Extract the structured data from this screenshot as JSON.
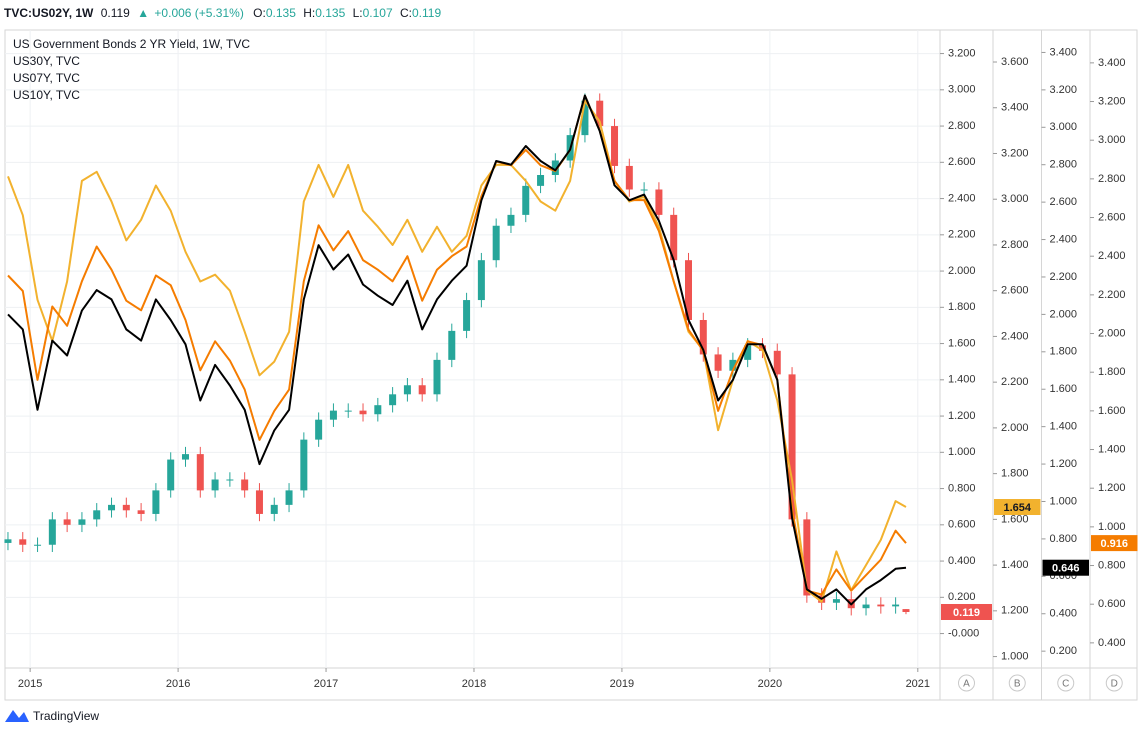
{
  "header": {
    "symbol": "TVC:US02Y, 1W",
    "last": "0.119",
    "change": "+0.006 (+5.31%)",
    "open_label": "O:",
    "open": "0.135",
    "high_label": "H:",
    "high": "0.135",
    "low_label": "L:",
    "low": "0.107",
    "close_label": "C:",
    "close": "0.119"
  },
  "chart_data": {
    "type": "candlestick",
    "title": "US Government Bonds 2 YR Yield, 1W, TVC",
    "axis": "A",
    "up_color": "#26a69a",
    "down_color": "#ef5350",
    "grid": true,
    "x": [
      2014.85,
      2014.95,
      2015.05,
      2015.15,
      2015.25,
      2015.35,
      2015.45,
      2015.55,
      2015.65,
      2015.75,
      2015.85,
      2015.95,
      2016.05,
      2016.15,
      2016.25,
      2016.35,
      2016.45,
      2016.55,
      2016.65,
      2016.75,
      2016.85,
      2016.95,
      2017.05,
      2017.15,
      2017.25,
      2017.35,
      2017.45,
      2017.55,
      2017.65,
      2017.75,
      2017.85,
      2017.95,
      2018.05,
      2018.15,
      2018.25,
      2018.35,
      2018.45,
      2018.55,
      2018.65,
      2018.75,
      2018.85,
      2018.95,
      2019.05,
      2019.15,
      2019.25,
      2019.35,
      2019.45,
      2019.55,
      2019.65,
      2019.75,
      2019.85,
      2019.95,
      2020.05,
      2020.15,
      2020.25,
      2020.35,
      2020.45,
      2020.55,
      2020.65,
      2020.75,
      2020.85,
      2020.92
    ],
    "open": [
      0.5,
      0.52,
      0.49,
      0.49,
      0.63,
      0.6,
      0.63,
      0.68,
      0.71,
      0.68,
      0.66,
      0.79,
      0.96,
      0.99,
      0.79,
      0.85,
      0.85,
      0.79,
      0.66,
      0.71,
      0.79,
      1.07,
      1.18,
      1.23,
      1.23,
      1.21,
      1.26,
      1.32,
      1.37,
      1.32,
      1.51,
      1.67,
      1.84,
      2.06,
      2.25,
      2.31,
      2.47,
      2.53,
      2.61,
      2.75,
      2.94,
      2.8,
      2.58,
      2.45,
      2.45,
      2.31,
      2.06,
      1.73,
      1.54,
      1.45,
      1.51,
      1.59,
      1.56,
      1.43,
      0.63,
      0.21,
      0.17,
      0.19,
      0.14,
      0.16,
      0.15,
      0.135
    ],
    "high": [
      0.56,
      0.56,
      0.53,
      0.67,
      0.67,
      0.67,
      0.72,
      0.75,
      0.75,
      0.72,
      0.83,
      1.0,
      1.03,
      1.03,
      0.89,
      0.89,
      0.89,
      0.83,
      0.75,
      0.83,
      1.11,
      1.22,
      1.27,
      1.27,
      1.27,
      1.3,
      1.36,
      1.41,
      1.41,
      1.55,
      1.71,
      1.88,
      2.1,
      2.29,
      2.35,
      2.51,
      2.57,
      2.65,
      2.79,
      2.98,
      2.98,
      2.84,
      2.62,
      2.49,
      2.49,
      2.35,
      2.1,
      1.77,
      1.58,
      1.55,
      1.63,
      1.63,
      1.6,
      1.47,
      0.67,
      0.25,
      0.23,
      0.23,
      0.2,
      0.2,
      0.2,
      0.135
    ],
    "low": [
      0.46,
      0.45,
      0.45,
      0.45,
      0.56,
      0.56,
      0.59,
      0.64,
      0.64,
      0.62,
      0.62,
      0.75,
      0.92,
      0.75,
      0.75,
      0.81,
      0.75,
      0.62,
      0.62,
      0.67,
      0.75,
      1.03,
      1.14,
      1.19,
      1.17,
      1.17,
      1.22,
      1.28,
      1.28,
      1.28,
      1.47,
      1.63,
      1.8,
      2.02,
      2.21,
      2.27,
      2.43,
      2.49,
      2.57,
      2.71,
      2.76,
      2.54,
      2.41,
      2.41,
      2.27,
      2.02,
      1.69,
      1.5,
      1.41,
      1.41,
      1.47,
      1.52,
      1.39,
      0.59,
      0.17,
      0.13,
      0.13,
      0.1,
      0.1,
      0.11,
      0.11,
      0.107
    ],
    "close": [
      0.52,
      0.49,
      0.49,
      0.63,
      0.6,
      0.63,
      0.68,
      0.71,
      0.68,
      0.66,
      0.79,
      0.96,
      0.99,
      0.79,
      0.85,
      0.85,
      0.79,
      0.66,
      0.71,
      0.79,
      1.07,
      1.18,
      1.23,
      1.23,
      1.21,
      1.26,
      1.32,
      1.37,
      1.32,
      1.51,
      1.67,
      1.84,
      2.06,
      2.25,
      2.31,
      2.47,
      2.53,
      2.61,
      2.75,
      2.94,
      2.8,
      2.58,
      2.45,
      2.45,
      2.31,
      2.06,
      1.73,
      1.54,
      1.45,
      1.51,
      1.59,
      1.56,
      1.43,
      0.63,
      0.21,
      0.17,
      0.19,
      0.14,
      0.16,
      0.15,
      0.16,
      0.119
    ],
    "series": [
      {
        "name": "US30Y, TVC",
        "type": "line",
        "color": "#f2b22e",
        "axis": "B",
        "values": [
          3.1,
          2.93,
          2.56,
          2.38,
          2.64,
          3.08,
          3.12,
          2.99,
          2.82,
          2.91,
          3.06,
          2.95,
          2.77,
          2.64,
          2.67,
          2.6,
          2.42,
          2.23,
          2.29,
          2.42,
          2.99,
          3.15,
          3.01,
          3.15,
          2.95,
          2.88,
          2.8,
          2.91,
          2.77,
          2.88,
          2.77,
          2.84,
          3.06,
          3.15,
          3.15,
          3.08,
          2.99,
          2.95,
          3.08,
          3.43,
          3.34,
          3.08,
          2.99,
          3.01,
          2.88,
          2.64,
          2.42,
          2.34,
          1.99,
          2.21,
          2.38,
          2.34,
          2.12,
          1.77,
          1.29,
          1.24,
          1.46,
          1.29,
          1.4,
          1.51,
          1.68,
          1.654
        ]
      },
      {
        "name": "US07Y, TVC",
        "type": "line",
        "color": "#f57c00",
        "axis": "D",
        "values": [
          2.3,
          2.22,
          1.76,
          2.14,
          2.04,
          2.27,
          2.45,
          2.33,
          2.17,
          2.12,
          2.3,
          2.25,
          2.07,
          1.81,
          1.96,
          1.86,
          1.71,
          1.45,
          1.6,
          1.71,
          2.27,
          2.56,
          2.43,
          2.53,
          2.38,
          2.33,
          2.27,
          2.4,
          2.17,
          2.33,
          2.4,
          2.45,
          2.71,
          2.89,
          2.87,
          2.95,
          2.87,
          2.84,
          2.95,
          3.23,
          3.05,
          2.79,
          2.69,
          2.69,
          2.53,
          2.27,
          2.02,
          1.91,
          1.6,
          1.81,
          1.96,
          1.94,
          1.76,
          1.09,
          0.67,
          0.65,
          0.78,
          0.67,
          0.75,
          0.83,
          0.98,
          0.916
        ]
      },
      {
        "name": "US10Y, TVC",
        "type": "line",
        "color": "#000000",
        "axis": "C",
        "values": [
          2.0,
          1.92,
          1.49,
          1.86,
          1.78,
          2.02,
          2.13,
          2.08,
          1.92,
          1.86,
          2.08,
          1.97,
          1.84,
          1.54,
          1.73,
          1.62,
          1.49,
          1.2,
          1.38,
          1.49,
          2.08,
          2.37,
          2.24,
          2.32,
          2.16,
          2.1,
          2.05,
          2.18,
          1.92,
          2.08,
          2.18,
          2.26,
          2.61,
          2.82,
          2.8,
          2.9,
          2.82,
          2.77,
          2.88,
          3.17,
          2.98,
          2.69,
          2.61,
          2.64,
          2.5,
          2.29,
          1.97,
          1.81,
          1.54,
          1.65,
          1.84,
          1.84,
          1.65,
          0.91,
          0.53,
          0.48,
          0.53,
          0.45,
          0.53,
          0.58,
          0.64,
          0.646
        ]
      }
    ],
    "xlim": [
      2014.83,
      2021.15
    ],
    "xticks": [
      2015,
      2016,
      2017,
      2018,
      2019,
      2020,
      2021
    ],
    "axes": [
      {
        "name": "A",
        "ylim": [
          -0.19,
          3.33
        ],
        "yticks": [
          {
            "value": 0,
            "label": "-0.000"
          },
          {
            "value": 0.2,
            "label": "0.200"
          },
          {
            "value": 0.4,
            "label": "0.400"
          },
          {
            "value": 0.6,
            "label": "0.600"
          },
          {
            "value": 0.8,
            "label": "0.800"
          },
          {
            "value": 1,
            "label": "1.000"
          },
          {
            "value": 1.2,
            "label": "1.200"
          },
          {
            "value": 1.4,
            "label": "1.400"
          },
          {
            "value": 1.6,
            "label": "1.600"
          },
          {
            "value": 1.8,
            "label": "1.800"
          },
          {
            "value": 2,
            "label": "2.000"
          },
          {
            "value": 2.2,
            "label": "2.200"
          },
          {
            "value": 2.4,
            "label": "2.400"
          },
          {
            "value": 2.6,
            "label": "2.600"
          },
          {
            "value": 2.8,
            "label": "2.800"
          },
          {
            "value": 3,
            "label": "3.000"
          },
          {
            "value": 3.2,
            "label": "3.200"
          }
        ]
      },
      {
        "name": "B",
        "ylim": [
          0.95,
          3.74
        ],
        "yticks": [
          {
            "value": 1,
            "label": "1.000"
          },
          {
            "value": 1.2,
            "label": "1.200"
          },
          {
            "value": 1.4,
            "label": "1.400"
          },
          {
            "value": 1.6,
            "label": "1.600"
          },
          {
            "value": 1.8,
            "label": "1.800"
          },
          {
            "value": 2,
            "label": "2.000"
          },
          {
            "value": 2.2,
            "label": "2.200"
          },
          {
            "value": 2.4,
            "label": "2.400"
          },
          {
            "value": 2.6,
            "label": "2.600"
          },
          {
            "value": 2.8,
            "label": "2.800"
          },
          {
            "value": 3,
            "label": "3.000"
          },
          {
            "value": 3.2,
            "label": "3.200"
          },
          {
            "value": 3.4,
            "label": "3.400"
          },
          {
            "value": 3.6,
            "label": "3.600"
          }
        ]
      },
      {
        "name": "C",
        "ylim": [
          0.11,
          3.52
        ],
        "yticks": [
          {
            "value": 0.2,
            "label": "0.200"
          },
          {
            "value": 0.4,
            "label": "0.400"
          },
          {
            "value": 0.6,
            "label": "0.600"
          },
          {
            "value": 0.8,
            "label": "0.800"
          },
          {
            "value": 1,
            "label": "1.000"
          },
          {
            "value": 1.2,
            "label": "1.200"
          },
          {
            "value": 1.4,
            "label": "1.400"
          },
          {
            "value": 1.6,
            "label": "1.600"
          },
          {
            "value": 1.8,
            "label": "1.800"
          },
          {
            "value": 2,
            "label": "2.000"
          },
          {
            "value": 2.2,
            "label": "2.200"
          },
          {
            "value": 2.4,
            "label": "2.400"
          },
          {
            "value": 2.6,
            "label": "2.600"
          },
          {
            "value": 2.8,
            "label": "2.800"
          },
          {
            "value": 3,
            "label": "3.000"
          },
          {
            "value": 3.2,
            "label": "3.200"
          },
          {
            "value": 3.4,
            "label": "3.400"
          }
        ]
      },
      {
        "name": "D",
        "ylim": [
          0.27,
          3.57
        ],
        "yticks": [
          {
            "value": 0.4,
            "label": "0.400"
          },
          {
            "value": 0.6,
            "label": "0.600"
          },
          {
            "value": 0.8,
            "label": "0.800"
          },
          {
            "value": 1,
            "label": "1.000"
          },
          {
            "value": 1.2,
            "label": "1.200"
          },
          {
            "value": 1.4,
            "label": "1.400"
          },
          {
            "value": 1.6,
            "label": "1.600"
          },
          {
            "value": 1.8,
            "label": "1.800"
          },
          {
            "value": 2,
            "label": "2.000"
          },
          {
            "value": 2.2,
            "label": "2.200"
          },
          {
            "value": 2.4,
            "label": "2.400"
          },
          {
            "value": 2.6,
            "label": "2.600"
          },
          {
            "value": 2.8,
            "label": "2.800"
          },
          {
            "value": 3,
            "label": "3.000"
          },
          {
            "value": 3.2,
            "label": "3.200"
          },
          {
            "value": 3.4,
            "label": "3.400"
          }
        ]
      }
    ]
  },
  "branding": "TradingView"
}
